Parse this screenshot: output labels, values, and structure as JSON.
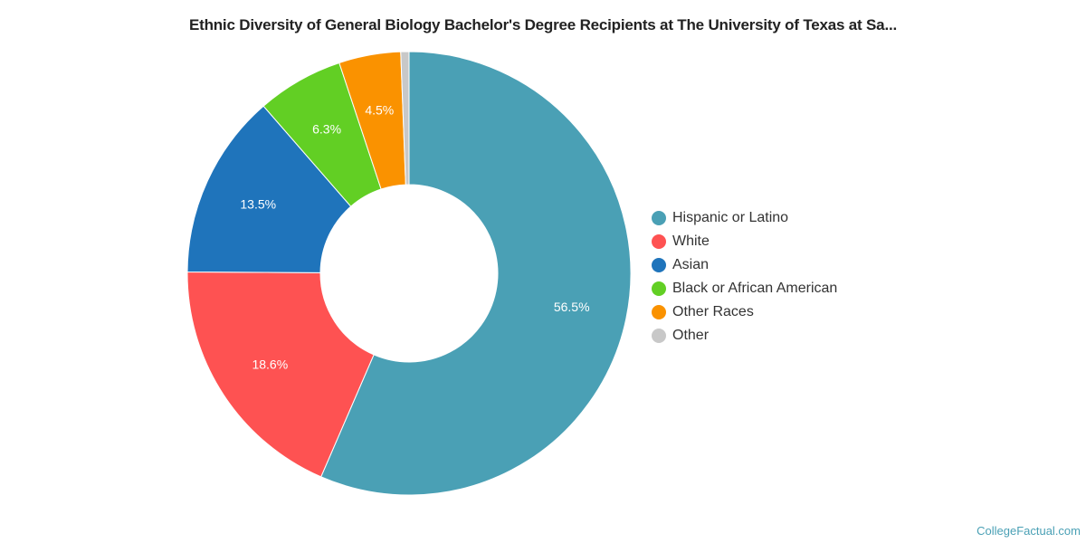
{
  "chart_data": {
    "type": "pie",
    "donut": true,
    "title": "Ethnic Diversity of General Biology Bachelor's Degree Recipients at The University of Texas at Sa...",
    "categories": [
      "Hispanic or Latino",
      "White",
      "Asian",
      "Black or African American",
      "Other Races",
      "Other"
    ],
    "values": [
      56.5,
      18.6,
      13.5,
      6.3,
      4.5,
      0.6
    ],
    "labels": [
      "56.5%",
      "18.6%",
      "13.5%",
      "6.3%",
      "4.5%",
      ""
    ],
    "colors": [
      "#4aa0b5",
      "#fe5252",
      "#1f74bb",
      "#62cf24",
      "#fa9200",
      "#c8c8c8"
    ],
    "legend_position": "right"
  },
  "credit": "CollegeFactual.com"
}
